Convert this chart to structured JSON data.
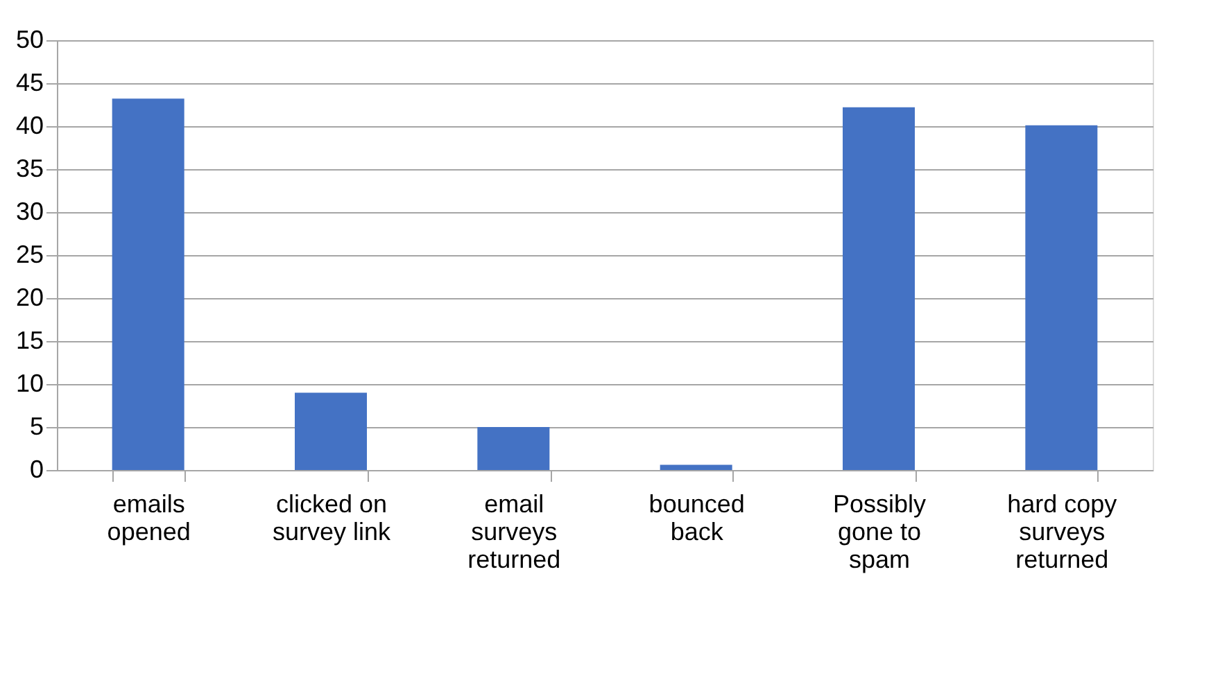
{
  "chart_data": {
    "type": "bar",
    "categories": [
      "emails opened",
      "clicked on survey link",
      "email surveys returned",
      "bounced back",
      "Possibly gone to spam",
      "hard copy surveys returned"
    ],
    "values": [
      43.2,
      9,
      5,
      0.6,
      42.2,
      40.1
    ],
    "color": "#4472c4",
    "ylim": [
      0,
      50
    ],
    "yticks": [
      0,
      5,
      10,
      15,
      20,
      25,
      30,
      35,
      40,
      45,
      50
    ],
    "grid": "y"
  }
}
